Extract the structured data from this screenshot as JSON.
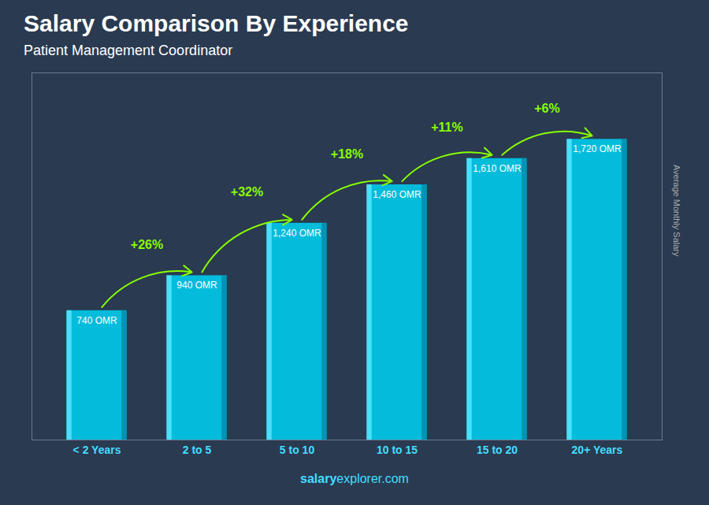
{
  "chart_data": {
    "type": "bar",
    "title": "Salary Comparison By Experience",
    "subtitle": "Patient Management Coordinator",
    "ylabel": "Average Monthly Salary",
    "categories": [
      "< 2 Years",
      "2 to 5",
      "5 to 10",
      "10 to 15",
      "15 to 20",
      "20+ Years"
    ],
    "values": [
      740,
      940,
      1240,
      1460,
      1610,
      1720
    ],
    "value_labels": [
      "740 OMR",
      "940 OMR",
      "1,240 OMR",
      "1,460 OMR",
      "1,610 OMR",
      "1,720 OMR"
    ],
    "data_labels": true,
    "color": "#00c8e8",
    "ylim": [
      0,
      2100
    ],
    "tick_labels": "x",
    "grid": false,
    "annotations": [
      {
        "text": "+26%",
        "from": "< 2 Years",
        "to": "2 to 5"
      },
      {
        "text": "+32%",
        "from": "2 to 5",
        "to": "5 to 10"
      },
      {
        "text": "+18%",
        "from": "5 to 10",
        "to": "10 to 15"
      },
      {
        "text": "+11%",
        "from": "10 to 15",
        "to": "15 to 20"
      },
      {
        "text": "+6%",
        "from": "15 to 20",
        "to": "20+ Years"
      }
    ],
    "footer": [
      "salary",
      "explorer.com"
    ]
  }
}
